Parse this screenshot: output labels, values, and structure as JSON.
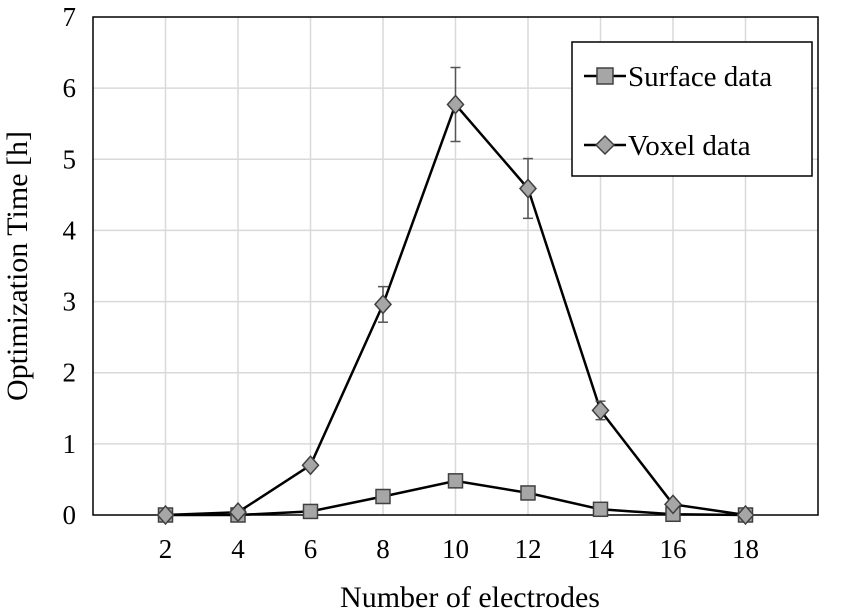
{
  "chart_data": {
    "type": "line",
    "x": [
      2,
      4,
      6,
      8,
      10,
      12,
      14,
      16,
      18
    ],
    "xlabel": "Number of electrodes",
    "ylabel": "Optimization Time [h]",
    "xlim": [
      0,
      20
    ],
    "ylim": [
      0,
      7
    ],
    "xticks": [
      2,
      4,
      6,
      8,
      10,
      12,
      14,
      16,
      18
    ],
    "yticks": [
      0,
      1,
      2,
      3,
      4,
      5,
      6,
      7
    ],
    "grid": true,
    "legend_position": "top-right",
    "series": [
      {
        "name": "Surface data",
        "marker": "square",
        "values": [
          0.0,
          0.0,
          0.05,
          0.26,
          0.48,
          0.31,
          0.08,
          0.01,
          0.0
        ],
        "errors": [
          0,
          0,
          0,
          0,
          0,
          0,
          0,
          0,
          0
        ]
      },
      {
        "name": "Voxel data",
        "marker": "diamond",
        "values": [
          0.0,
          0.04,
          0.7,
          2.96,
          5.77,
          4.59,
          1.47,
          0.15,
          0.0
        ],
        "errors": [
          0,
          0,
          0,
          0.25,
          0.52,
          0.42,
          0.13,
          0,
          0
        ]
      }
    ]
  }
}
